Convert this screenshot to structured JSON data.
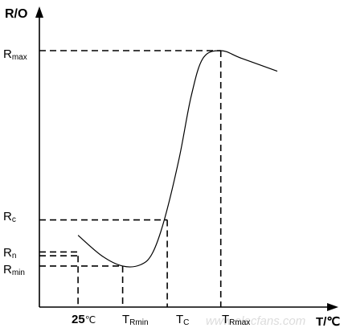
{
  "chart_data": {
    "type": "line",
    "ylabel": "R/O",
    "xlabel": "T/℃",
    "y_tick_labels": [
      {
        "main": "R",
        "sub": "max"
      },
      {
        "main": "R",
        "sub": "c"
      },
      {
        "main": "R",
        "sub": "n"
      },
      {
        "main": "R",
        "sub": "min"
      }
    ],
    "x_tick_labels": [
      {
        "main": "25",
        "sub": "℃"
      },
      {
        "main": "T",
        "sub": "Rmin"
      },
      {
        "main": "T",
        "sub": "C"
      },
      {
        "main": "T",
        "sub": "Rmax"
      }
    ],
    "watermark": "www.elecfans.com",
    "series": [
      {
        "points": [
          [
            0.13,
            0.28
          ],
          [
            0.21,
            0.2
          ],
          [
            0.28,
            0.16
          ],
          [
            0.34,
            0.165
          ],
          [
            0.38,
            0.21
          ],
          [
            0.42,
            0.34
          ],
          [
            0.47,
            0.58
          ],
          [
            0.51,
            0.82
          ],
          [
            0.55,
            0.97
          ],
          [
            0.61,
            1.0
          ],
          [
            0.68,
            0.97
          ],
          [
            0.8,
            0.92
          ]
        ],
        "color": "#000000"
      }
    ],
    "reference_points": [
      [
        0.13,
        0.2
      ],
      [
        0.28,
        0.16
      ],
      [
        0.43,
        0.34
      ],
      [
        0.61,
        1.0
      ]
    ],
    "xlim": [
      0,
      1
    ],
    "ylim": [
      0,
      1.0
    ]
  }
}
